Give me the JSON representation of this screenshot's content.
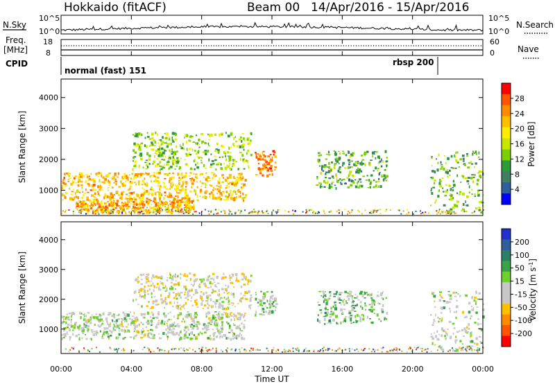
{
  "header": {
    "radar": "Hokkaido (fitACF)",
    "beam": "Beam 00",
    "date_range": "14/Apr/2016 - 15/Apr/2016"
  },
  "noise_panel": {
    "left_label": "N.Sky",
    "right_label": "N.Search",
    "left_ticks": [
      "10^5",
      "10^0"
    ],
    "right_ticks": [
      "10^5",
      "10^0"
    ]
  },
  "freq_panel": {
    "left_label_line1": "Freq.",
    "left_label_line2": "[MHz]",
    "right_label": "Nave",
    "left_ticks": [
      "18",
      "8"
    ],
    "right_ticks": [
      "60",
      "0"
    ]
  },
  "cpid_panel": {
    "label": "CPID",
    "mode1": "normal (fast) 151",
    "mode2": "rbsp 200"
  },
  "power_colorbar": {
    "label": "Power [dB]",
    "ticks": [
      "28",
      "24",
      "20",
      "16",
      "12",
      "8",
      "4"
    ],
    "colors": [
      "#ff0000",
      "#ff5500",
      "#ff8c00",
      "#ffc000",
      "#ffee00",
      "#c8e600",
      "#7cd000",
      "#2e9b3a",
      "#3f7f66",
      "#2e5f9a",
      "#0000ff"
    ]
  },
  "velocity_colorbar": {
    "label": "Velocity [m s^-1]",
    "ticks": [
      "200",
      "100",
      "50",
      "15",
      "-15",
      "-50",
      "-100",
      "-200"
    ],
    "colors": [
      "#2233cc",
      "#2e5f9a",
      "#2f7f66",
      "#3aa24a",
      "#6fd030",
      "#c8c8c8",
      "#c8c8c8",
      "#ffc000",
      "#ff8c00",
      "#ff5500",
      "#ff0000"
    ]
  },
  "chart_data": [
    {
      "type": "heatmap",
      "title": "",
      "quantity": "Power [dB]",
      "xlabel": "",
      "ylabel": "Slant Range [km]",
      "xlim": [
        "00:00",
        "00:00"
      ],
      "ylim": [
        180,
        4600
      ],
      "x_ticks": [
        "00:00",
        "04:00",
        "08:00",
        "12:00",
        "16:00",
        "20:00",
        "00:00"
      ],
      "y_ticks": [
        1000,
        2000,
        3000,
        4000
      ],
      "echo_regions": [
        {
          "t_start": 0.0,
          "t_end": 10.5,
          "range_low": 700,
          "range_high": 1600,
          "power_db": 22
        },
        {
          "t_start": 0.8,
          "t_end": 7.5,
          "range_low": 300,
          "range_high": 700,
          "power_db": 24
        },
        {
          "t_start": 4.0,
          "t_end": 10.8,
          "range_low": 1700,
          "range_high": 2900,
          "power_db": 14
        },
        {
          "t_start": 11.0,
          "t_end": 12.2,
          "range_low": 1500,
          "range_high": 2300,
          "power_db": 26
        },
        {
          "t_start": 14.5,
          "t_end": 18.5,
          "range_low": 1100,
          "range_high": 2300,
          "power_db": 10
        },
        {
          "t_start": 21.0,
          "t_end": 24.0,
          "range_low": 300,
          "range_high": 2300,
          "power_db": 12
        }
      ]
    },
    {
      "type": "heatmap",
      "title": "",
      "quantity": "Velocity [m s^-1]",
      "xlabel": "Time UT",
      "ylabel": "Slant Range [km]",
      "xlim": [
        "00:00",
        "00:00"
      ],
      "ylim": [
        180,
        4600
      ],
      "x_ticks": [
        "00:00",
        "04:00",
        "08:00",
        "12:00",
        "16:00",
        "20:00",
        "00:00"
      ],
      "y_ticks": [
        1000,
        2000,
        3000,
        4000
      ],
      "echo_regions": [
        {
          "t_start": 0.0,
          "t_end": 10.5,
          "range_low": 700,
          "range_high": 1600,
          "velocity": 0
        },
        {
          "t_start": 4.0,
          "t_end": 10.8,
          "range_low": 1700,
          "range_high": 2900,
          "velocity": -30
        },
        {
          "t_start": 11.0,
          "t_end": 12.2,
          "range_low": 1500,
          "range_high": 2300,
          "velocity": 20
        },
        {
          "t_start": 14.5,
          "t_end": 18.5,
          "range_low": 1200,
          "range_high": 2300,
          "velocity": 40
        },
        {
          "t_start": 21.0,
          "t_end": 24.0,
          "range_low": 300,
          "range_high": 2300,
          "velocity": 0
        }
      ]
    }
  ]
}
